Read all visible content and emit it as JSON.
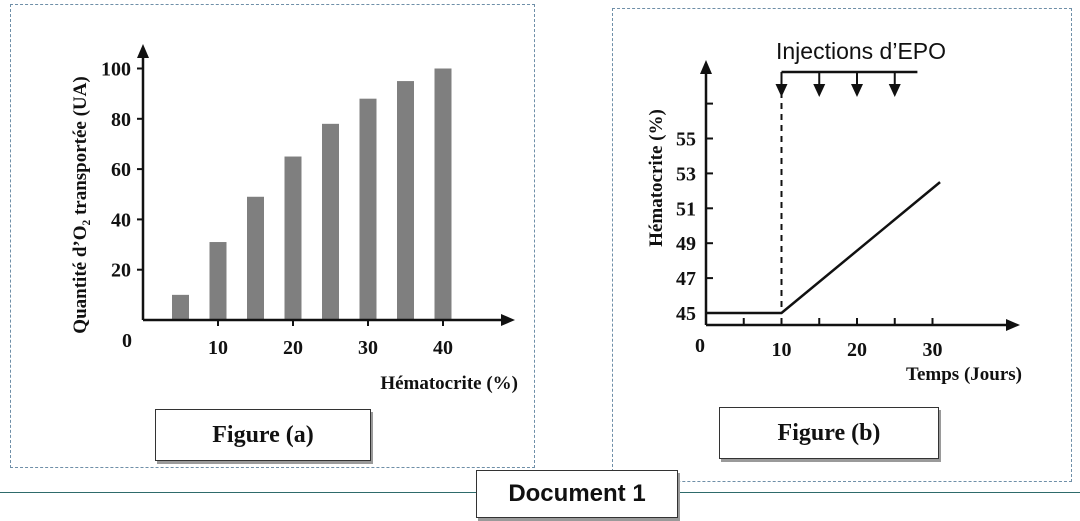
{
  "document_label": "Document 1",
  "figure_a": {
    "caption": "Figure (a)",
    "chart_data": {
      "type": "bar",
      "x": [
        5,
        10,
        15,
        20,
        25,
        30,
        35,
        40
      ],
      "values": [
        10,
        31,
        49,
        65,
        78,
        88,
        95,
        100
      ],
      "xlabel": "Hématocrite (%)",
      "ylabel": "Quantité d’O₂ transportée (UA)",
      "origin_label": "0",
      "xticks": [
        10,
        20,
        30,
        40
      ],
      "yticks": [
        20,
        40,
        60,
        80,
        100
      ],
      "xlim": [
        0,
        49
      ],
      "ylim": [
        0,
        106
      ],
      "bar_color": "#7f7f7f",
      "grid": false
    }
  },
  "figure_b": {
    "caption": "Figure (b)",
    "annotation": "Injections d’EPO",
    "chart_data": {
      "type": "line",
      "series": [
        {
          "x": [
            0,
            10,
            31
          ],
          "values": [
            45,
            45,
            52.5
          ]
        }
      ],
      "xlabel": "Temps (Jours)",
      "ylabel": "Hématocrite (%)",
      "origin_label": "0",
      "xticks": [
        10,
        20,
        30
      ],
      "yticks": [
        45,
        47,
        49,
        51,
        53,
        55
      ],
      "xlim": [
        0,
        40
      ],
      "ylim": [
        45,
        57
      ],
      "injection_days": [
        10,
        15,
        20,
        25
      ],
      "injection_span": [
        10,
        28
      ],
      "dashed_marker_x": 10,
      "grid": false
    }
  }
}
